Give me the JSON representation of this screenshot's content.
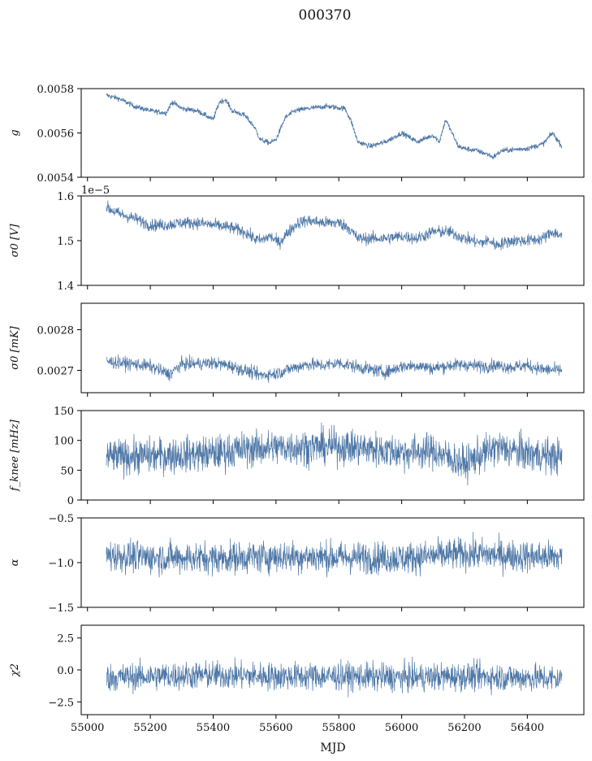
{
  "figure": {
    "title": "000370",
    "xlabel": "MJD"
  },
  "colors": {
    "series": "#4c76a6",
    "axes": "#000000"
  },
  "chart_data": [
    {
      "type": "line",
      "ylabel": "g",
      "xlim": [
        54980,
        56580
      ],
      "ylim": [
        0.0054,
        0.0058
      ],
      "xticks": [
        55000,
        55200,
        55400,
        55600,
        55800,
        56000,
        56200,
        56400
      ],
      "yticks": [
        0.0054,
        0.0056,
        0.0058
      ],
      "yticklabels": [
        "0.0054",
        "0.0056",
        "0.0058"
      ],
      "offset_text": "",
      "show_xticklabels": false,
      "series": [
        {
          "x": [
            55060,
            55100,
            55150,
            55200,
            55250,
            55270,
            55300,
            55350,
            55400,
            55420,
            55440,
            55460,
            55500,
            55530,
            55550,
            55580,
            55600,
            55630,
            55660,
            55700,
            55760,
            55820,
            55840,
            55860,
            55900,
            55950,
            56000,
            56050,
            56100,
            56120,
            56140,
            56180,
            56200,
            56240,
            56280,
            56290,
            56320,
            56400,
            56450,
            56480,
            56510
          ],
          "y": [
            0.00577,
            0.005755,
            0.00572,
            0.0057,
            0.00569,
            0.00574,
            0.00571,
            0.0057,
            0.00566,
            0.00574,
            0.00575,
            0.0057,
            0.00568,
            0.00563,
            0.00557,
            0.005555,
            0.00557,
            0.00567,
            0.0057,
            0.00571,
            0.00572,
            0.00571,
            0.00565,
            0.00556,
            0.00554,
            0.00556,
            0.0056,
            0.00556,
            0.00559,
            0.00556,
            0.00566,
            0.00554,
            0.00553,
            0.00552,
            0.0055,
            0.00549,
            0.00552,
            0.00553,
            0.00555,
            0.0056,
            0.00554
          ],
          "noise": 1.2e-05,
          "min_x": 55060,
          "max_x": 56510
        }
      ]
    },
    {
      "type": "line",
      "ylabel": "σ0 [V]",
      "xlim": [
        54980,
        56580
      ],
      "ylim": [
        1.4e-05,
        1.6e-05
      ],
      "xticks": [
        55000,
        55200,
        55400,
        55600,
        55800,
        56000,
        56200,
        56400
      ],
      "yticks": [
        1.4e-05,
        1.5e-05,
        1.6e-05
      ],
      "yticklabels": [
        "1.4",
        "1.5",
        "1.6"
      ],
      "offset_text": "1e−5",
      "show_xticklabels": false,
      "series": [
        {
          "x": [
            55060,
            55100,
            55150,
            55200,
            55250,
            55300,
            55350,
            55400,
            55450,
            55500,
            55530,
            55550,
            55580,
            55610,
            55640,
            55670,
            55700,
            55750,
            55800,
            55830,
            55860,
            55900,
            55950,
            56000,
            56050,
            56100,
            56150,
            56200,
            56250,
            56280,
            56300,
            56350,
            56400,
            56450,
            56480,
            56510
          ],
          "y": [
            1.575e-05,
            1.56e-05,
            1.55e-05,
            1.535e-05,
            1.535e-05,
            1.54e-05,
            1.54e-05,
            1.535e-05,
            1.53e-05,
            1.52e-05,
            1.505e-05,
            1.5e-05,
            1.51e-05,
            1.495e-05,
            1.52e-05,
            1.54e-05,
            1.545e-05,
            1.54e-05,
            1.54e-05,
            1.53e-05,
            1.505e-05,
            1.505e-05,
            1.505e-05,
            1.51e-05,
            1.505e-05,
            1.52e-05,
            1.52e-05,
            1.505e-05,
            1.495e-05,
            1.5e-05,
            1.49e-05,
            1.5e-05,
            1.5e-05,
            1.505e-05,
            1.52e-05,
            1.51e-05
          ],
          "noise": 1.4e-07,
          "min_x": 55060,
          "max_x": 56510
        }
      ]
    },
    {
      "type": "line",
      "ylabel": "σ0 [mK]",
      "xlim": [
        54980,
        56580
      ],
      "ylim": [
        0.002645,
        0.002865
      ],
      "xticks": [
        55000,
        55200,
        55400,
        55600,
        55800,
        56000,
        56200,
        56400
      ],
      "yticks": [
        0.0027,
        0.0028
      ],
      "yticklabels": [
        "0.0027",
        "0.0028"
      ],
      "offset_text": "",
      "show_xticklabels": false,
      "series": [
        {
          "x": [
            55060,
            55150,
            55200,
            55260,
            55300,
            55400,
            55450,
            55500,
            55550,
            55600,
            55650,
            55700,
            55750,
            55800,
            55850,
            55900,
            55950,
            56000,
            56050,
            56100,
            56150,
            56200,
            56250,
            56300,
            56350,
            56400,
            56450,
            56510
          ],
          "y": [
            0.002722,
            0.002715,
            0.00271,
            0.00269,
            0.002715,
            0.002718,
            0.002712,
            0.0027,
            0.002688,
            0.002692,
            0.002705,
            0.002715,
            0.002712,
            0.002718,
            0.00271,
            0.002702,
            0.002695,
            0.00271,
            0.002712,
            0.002705,
            0.002712,
            0.002714,
            0.00271,
            0.002712,
            0.002708,
            0.002712,
            0.002702,
            0.0027
          ],
          "noise": 1.6e-05,
          "min_x": 55060,
          "max_x": 56510
        }
      ]
    },
    {
      "type": "line",
      "ylabel": "f_knee [mHz]",
      "xlim": [
        54980,
        56580
      ],
      "ylim": [
        0,
        150
      ],
      "xticks": [
        55000,
        55200,
        55400,
        55600,
        55800,
        56000,
        56200,
        56400
      ],
      "yticks": [
        0,
        50,
        100,
        150
      ],
      "yticklabels": [
        "0",
        "50",
        "100",
        "150"
      ],
      "offset_text": "",
      "show_xticklabels": false,
      "series": [
        {
          "x": [
            55060,
            55200,
            55400,
            55500,
            55600,
            55800,
            55900,
            56000,
            56100,
            56200,
            56250,
            56300,
            56400,
            56510
          ],
          "y": [
            72,
            74,
            78,
            85,
            88,
            90,
            86,
            80,
            82,
            60,
            75,
            88,
            78,
            72
          ],
          "noise": 30,
          "min_x": 55060,
          "max_x": 56510
        }
      ]
    },
    {
      "type": "line",
      "ylabel": "α",
      "xlim": [
        54980,
        56580
      ],
      "ylim": [
        -1.5,
        -0.5
      ],
      "xticks": [
        55000,
        55200,
        55400,
        55600,
        55800,
        56000,
        56200,
        56400
      ],
      "yticks": [
        -1.5,
        -1.0,
        -0.5
      ],
      "yticklabels": [
        "−1.5",
        "−1.0",
        "−0.5"
      ],
      "offset_text": "",
      "show_xticklabels": false,
      "series": [
        {
          "x": [
            55060,
            55200,
            55400,
            55600,
            55800,
            56000,
            56200,
            56400,
            56510
          ],
          "y": [
            -0.92,
            -0.94,
            -0.95,
            -0.93,
            -0.94,
            -0.95,
            -0.9,
            -0.93,
            -0.94
          ],
          "noise": 0.18,
          "min_x": 55060,
          "max_x": 56510
        }
      ]
    },
    {
      "type": "line",
      "ylabel": "χ2",
      "xlim": [
        54980,
        56580
      ],
      "ylim": [
        -3.5,
        3.5
      ],
      "xticks": [
        55000,
        55200,
        55400,
        55600,
        55800,
        56000,
        56200,
        56400
      ],
      "yticks": [
        -2.5,
        0.0,
        2.5
      ],
      "yticklabels": [
        "−2.5",
        "0.0",
        "2.5"
      ],
      "offset_text": "",
      "show_xticklabels": true,
      "series": [
        {
          "x": [
            55060,
            55200,
            55400,
            55600,
            55800,
            56000,
            56200,
            56400,
            56510
          ],
          "y": [
            -0.6,
            -0.5,
            -0.4,
            -0.5,
            -0.5,
            -0.6,
            -0.5,
            -0.6,
            -0.7
          ],
          "noise": 1.1,
          "min_x": 55060,
          "max_x": 56510
        }
      ]
    }
  ]
}
